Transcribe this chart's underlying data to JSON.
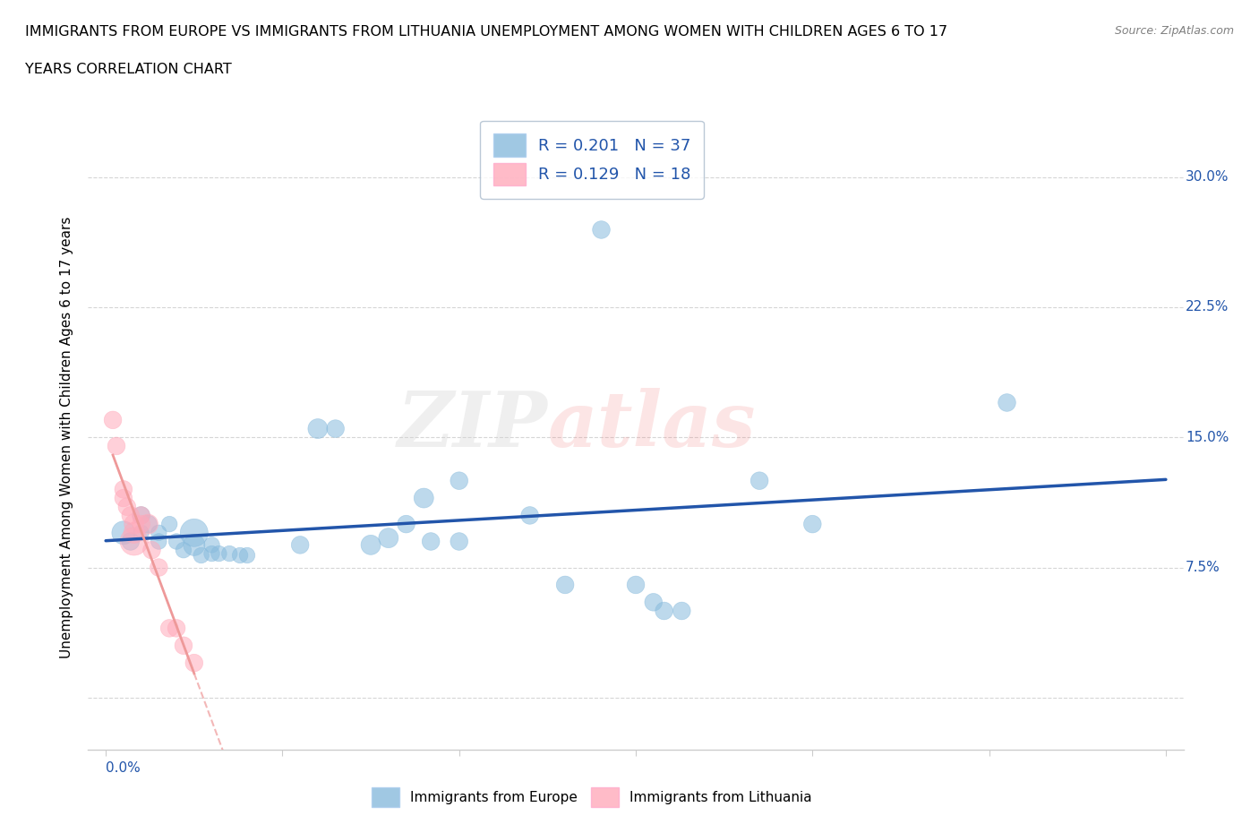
{
  "title_line1": "IMMIGRANTS FROM EUROPE VS IMMIGRANTS FROM LITHUANIA UNEMPLOYMENT AMONG WOMEN WITH CHILDREN AGES 6 TO 17",
  "title_line2": "YEARS CORRELATION CHART",
  "source": "Source: ZipAtlas.com",
  "ylabel": "Unemployment Among Women with Children Ages 6 to 17 years",
  "blue_color": "#88BBDD",
  "pink_color": "#FFAABB",
  "blue_line_color": "#2255AA",
  "pink_line_color": "#EE9999",
  "legend_R1": "R = 0.201",
  "legend_N1": "N = 37",
  "legend_R2": "R = 0.129",
  "legend_N2": "N = 18",
  "watermark_zip": "ZIP",
  "watermark_atlas": "atlas",
  "xlim": [
    -0.005,
    0.305
  ],
  "ylim": [
    -0.03,
    0.33
  ],
  "ytick_vals": [
    0.0,
    0.075,
    0.15,
    0.225,
    0.3
  ],
  "ytick_labels": [
    "",
    "7.5%",
    "15.0%",
    "22.5%",
    "30.0%"
  ],
  "xtick_vals": [
    0.0,
    0.05,
    0.1,
    0.15,
    0.2,
    0.25,
    0.3
  ],
  "grid_color": "#CCCCCC",
  "background_color": "#FFFFFF",
  "blue_points": [
    [
      0.005,
      0.095
    ],
    [
      0.007,
      0.09
    ],
    [
      0.01,
      0.105
    ],
    [
      0.01,
      0.095
    ],
    [
      0.012,
      0.1
    ],
    [
      0.015,
      0.095
    ],
    [
      0.015,
      0.09
    ],
    [
      0.018,
      0.1
    ],
    [
      0.02,
      0.09
    ],
    [
      0.022,
      0.085
    ],
    [
      0.025,
      0.095
    ],
    [
      0.025,
      0.088
    ],
    [
      0.027,
      0.082
    ],
    [
      0.03,
      0.088
    ],
    [
      0.03,
      0.083
    ],
    [
      0.032,
      0.083
    ],
    [
      0.035,
      0.083
    ],
    [
      0.038,
      0.082
    ],
    [
      0.04,
      0.082
    ],
    [
      0.055,
      0.088
    ],
    [
      0.06,
      0.155
    ],
    [
      0.065,
      0.155
    ],
    [
      0.075,
      0.088
    ],
    [
      0.08,
      0.092
    ],
    [
      0.085,
      0.1
    ],
    [
      0.09,
      0.115
    ],
    [
      0.092,
      0.09
    ],
    [
      0.1,
      0.125
    ],
    [
      0.1,
      0.09
    ],
    [
      0.12,
      0.105
    ],
    [
      0.13,
      0.065
    ],
    [
      0.15,
      0.065
    ],
    [
      0.155,
      0.055
    ],
    [
      0.158,
      0.05
    ],
    [
      0.163,
      0.05
    ],
    [
      0.185,
      0.125
    ],
    [
      0.2,
      0.1
    ]
  ],
  "blue_sizes": [
    350,
    200,
    200,
    160,
    200,
    160,
    160,
    160,
    160,
    160,
    500,
    300,
    160,
    160,
    160,
    160,
    160,
    160,
    160,
    200,
    250,
    200,
    250,
    250,
    200,
    250,
    200,
    200,
    200,
    200,
    200,
    200,
    200,
    200,
    200,
    200,
    200
  ],
  "blue_outlier": [
    0.255,
    0.17
  ],
  "blue_outlier2": [
    0.14,
    0.27
  ],
  "pink_points": [
    [
      0.002,
      0.16
    ],
    [
      0.003,
      0.145
    ],
    [
      0.005,
      0.12
    ],
    [
      0.005,
      0.115
    ],
    [
      0.006,
      0.11
    ],
    [
      0.007,
      0.105
    ],
    [
      0.008,
      0.1
    ],
    [
      0.008,
      0.095
    ],
    [
      0.008,
      0.09
    ],
    [
      0.01,
      0.105
    ],
    [
      0.01,
      0.1
    ],
    [
      0.012,
      0.1
    ],
    [
      0.013,
      0.085
    ],
    [
      0.015,
      0.075
    ],
    [
      0.018,
      0.04
    ],
    [
      0.02,
      0.04
    ],
    [
      0.022,
      0.03
    ],
    [
      0.025,
      0.02
    ]
  ],
  "pink_sizes": [
    200,
    200,
    200,
    200,
    200,
    200,
    250,
    280,
    500,
    200,
    200,
    250,
    200,
    200,
    200,
    200,
    200,
    200
  ]
}
